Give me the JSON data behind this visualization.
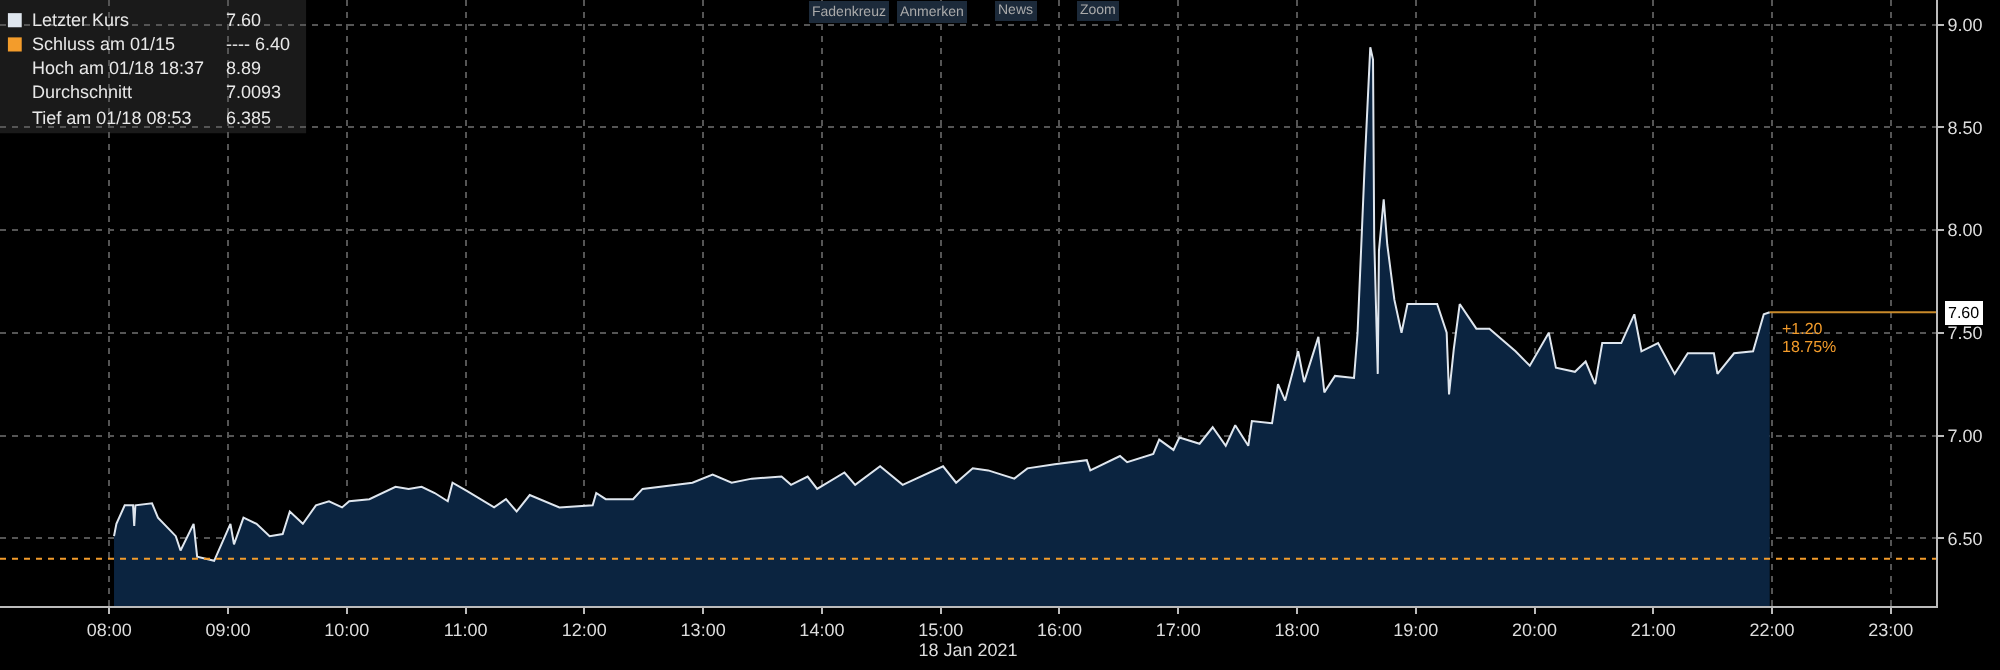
{
  "chart_data": {
    "type": "area",
    "xlabel": "18 Jan 2021",
    "x": [
      8.04,
      8.06,
      8.13,
      8.2,
      8.21,
      8.22,
      8.36,
      8.41,
      8.56,
      8.6,
      8.71,
      8.74,
      8.883,
      9.02,
      9.05,
      9.13,
      9.24,
      9.35,
      9.46,
      9.52,
      9.63,
      9.74,
      9.85,
      9.96,
      10.02,
      10.19,
      10.41,
      10.52,
      10.63,
      10.74,
      10.85,
      10.89,
      11.01,
      11.24,
      11.34,
      11.43,
      11.54,
      11.79,
      12.07,
      12.1,
      12.18,
      12.41,
      12.49,
      12.91,
      13.08,
      13.24,
      13.41,
      13.66,
      13.74,
      13.88,
      13.96,
      14.19,
      14.28,
      14.49,
      14.68,
      15.02,
      15.13,
      15.27,
      15.4,
      15.62,
      15.73,
      15.96,
      16.23,
      16.26,
      16.51,
      16.57,
      16.79,
      16.84,
      16.96,
      17.01,
      17.18,
      17.29,
      17.4,
      17.48,
      17.59,
      17.62,
      17.79,
      17.84,
      17.9,
      18.01,
      18.06,
      18.18,
      18.23,
      18.32,
      18.48,
      18.51,
      18.57,
      18.617,
      18.64,
      18.65,
      18.68,
      18.69,
      18.73,
      18.76,
      18.82,
      18.88,
      18.93,
      19.18,
      19.26,
      19.28,
      19.32,
      19.37,
      19.51,
      19.62,
      19.84,
      19.96,
      20.12,
      20.18,
      20.34,
      20.43,
      20.51,
      20.57,
      20.73,
      20.84,
      20.9,
      21.04,
      21.18,
      21.29,
      21.51,
      21.54,
      21.68,
      21.84,
      21.93,
      21.98
    ],
    "series": [
      {
        "name": "Letzter Kurs",
        "color": "#dfe6ee",
        "values": [
          6.51,
          6.57,
          6.66,
          6.66,
          6.56,
          6.66,
          6.67,
          6.6,
          6.51,
          6.44,
          6.57,
          6.41,
          6.39,
          6.57,
          6.47,
          6.6,
          6.57,
          6.51,
          6.52,
          6.63,
          6.57,
          6.66,
          6.68,
          6.65,
          6.68,
          6.69,
          6.75,
          6.74,
          6.75,
          6.72,
          6.68,
          6.77,
          6.73,
          6.65,
          6.69,
          6.63,
          6.71,
          6.65,
          6.66,
          6.72,
          6.69,
          6.69,
          6.74,
          6.77,
          6.81,
          6.77,
          6.79,
          6.8,
          6.76,
          6.8,
          6.74,
          6.82,
          6.76,
          6.85,
          6.76,
          6.85,
          6.77,
          6.84,
          6.83,
          6.79,
          6.84,
          6.86,
          6.88,
          6.83,
          6.9,
          6.87,
          6.91,
          6.98,
          6.93,
          6.99,
          6.96,
          7.04,
          6.95,
          7.05,
          6.95,
          7.07,
          7.06,
          7.25,
          7.17,
          7.41,
          7.26,
          7.48,
          7.21,
          7.29,
          7.28,
          7.5,
          8.32,
          8.89,
          8.83,
          7.96,
          7.3,
          7.9,
          8.15,
          7.93,
          7.66,
          7.5,
          7.64,
          7.64,
          7.5,
          7.2,
          7.42,
          7.64,
          7.52,
          7.52,
          7.41,
          7.34,
          7.5,
          7.33,
          7.31,
          7.36,
          7.25,
          7.45,
          7.45,
          7.59,
          7.41,
          7.45,
          7.3,
          7.4,
          7.4,
          7.3,
          7.4,
          7.41,
          7.59,
          7.6
        ]
      }
    ],
    "xlim": [
      7.08,
      23.38
    ],
    "xticks": [
      {
        "value": 8,
        "label": "08:00"
      },
      {
        "value": 9,
        "label": "09:00"
      },
      {
        "value": 10,
        "label": "10:00"
      },
      {
        "value": 11,
        "label": "11:00"
      },
      {
        "value": 12,
        "label": "12:00"
      },
      {
        "value": 13,
        "label": "13:00"
      },
      {
        "value": 14,
        "label": "14:00"
      },
      {
        "value": 15,
        "label": "15:00"
      },
      {
        "value": 16,
        "label": "16:00"
      },
      {
        "value": 17,
        "label": "17:00"
      },
      {
        "value": 18,
        "label": "18:00"
      },
      {
        "value": 19,
        "label": "19:00"
      },
      {
        "value": 20,
        "label": "20:00"
      },
      {
        "value": 21,
        "label": "21:00"
      },
      {
        "value": 22,
        "label": "22:00"
      },
      {
        "value": 23,
        "label": "23:00"
      }
    ],
    "ylim": [
      6.17,
      9.12
    ],
    "yticks": [
      {
        "value": 6.5,
        "label": "6.50"
      },
      {
        "value": 7.0,
        "label": "7.00"
      },
      {
        "value": 7.5,
        "label": "7.50"
      },
      {
        "value": 8.0,
        "label": "8.00"
      },
      {
        "value": 8.5,
        "label": "8.50"
      },
      {
        "value": 9.0,
        "label": "9.00"
      }
    ],
    "ref_lines": [
      {
        "axis": "y",
        "value": 6.4,
        "label": "Schluss am 01/15",
        "color": "#f39c2b",
        "line_style": "dotted"
      },
      {
        "axis": "y",
        "value": 7.6,
        "label": "7.60",
        "color": "#c98a2a",
        "line_style": "solid"
      }
    ],
    "annotations": [
      "7.60",
      "---- 6.40",
      "Hoch am 01/18 18:37",
      "8.89",
      "Durchschnitt",
      "7.0093",
      "Tief am 01/18 08:53",
      "6.385",
      {
        "text": "+1.20",
        "x": 22.0,
        "y": 7.6
      },
      {
        "text": "18.75%",
        "x": 22.0,
        "y": 7.6
      },
      "Fadenkreuz",
      "Anmerken",
      "News",
      "Zoom"
    ],
    "grid": true,
    "legend": "top left",
    "line_style": "solid",
    "marker": "none"
  }
}
